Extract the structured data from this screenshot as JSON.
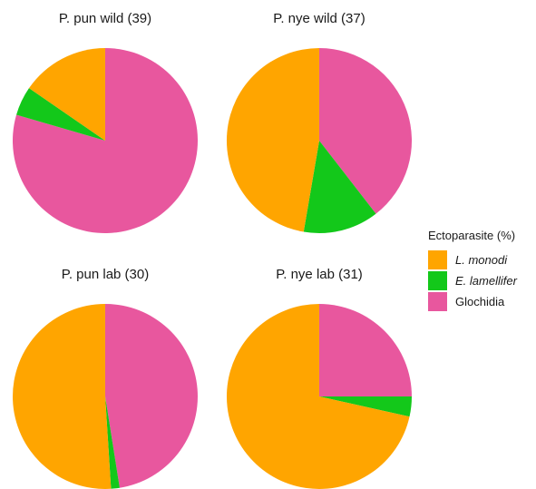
{
  "chart_data": {
    "type": "pie",
    "legend": {
      "title": "Ectoparasite (%)",
      "placement": "right",
      "entries": [
        {
          "key": "lmonodi",
          "label": "L. monodi",
          "italic": true,
          "color": "#FFA500"
        },
        {
          "key": "elamellifer",
          "label": "E. lamellifer",
          "italic": true,
          "color": "#13C81A"
        },
        {
          "key": "glochidia",
          "label": "Glochidia",
          "italic": false,
          "color": "#E8579E"
        }
      ]
    },
    "panels": [
      {
        "title": "P. pun wild (39)",
        "slices": {
          "glochidia": 79.5,
          "elamellifer": 5.1,
          "lmonodi": 15.4
        }
      },
      {
        "title": "P. nye wild (37)",
        "slices": {
          "glochidia": 39.5,
          "elamellifer": 13.2,
          "lmonodi": 47.3
        }
      },
      {
        "title": "P. pun lab (30)",
        "slices": {
          "glochidia": 47.5,
          "elamellifer": 1.5,
          "lmonodi": 51.0
        }
      },
      {
        "title": "P. nye lab (31)",
        "slices": {
          "glochidia": 25.0,
          "elamellifer": 3.5,
          "lmonodi": 71.5
        }
      }
    ]
  }
}
